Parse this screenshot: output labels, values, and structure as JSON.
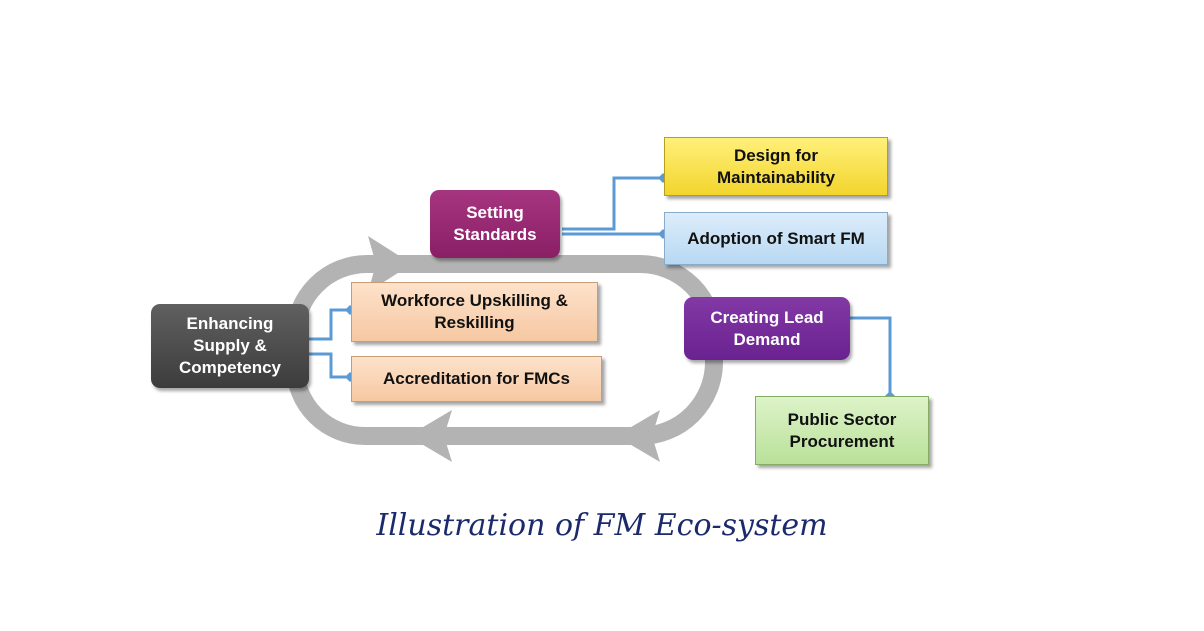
{
  "diagram": {
    "nodes": {
      "enhancing": "Enhancing\nSupply &\nCompetency",
      "setting_standards": "Setting\nStandards",
      "creating_lead_demand": "Creating Lead\nDemand",
      "workforce": "Workforce Upskilling &\nReskilling",
      "accreditation": "Accreditation for FMCs",
      "design": "Design for\nMaintainability",
      "smart_fm": "Adoption of Smart FM",
      "procurement": "Public Sector\nProcurement"
    },
    "colors": {
      "cycle_arrow": "#b3b3b3",
      "connector": "#5b9bd5",
      "enhancing": "#4d4d4d",
      "setting_standards": "#962a74",
      "creating_lead_demand": "#762d9c",
      "peach": "#f9d4b4",
      "yellow": "#f7df4a",
      "light_blue": "#c8e1f6",
      "light_green": "#c9e8ae"
    }
  },
  "caption": "Illustration of FM Eco-system"
}
